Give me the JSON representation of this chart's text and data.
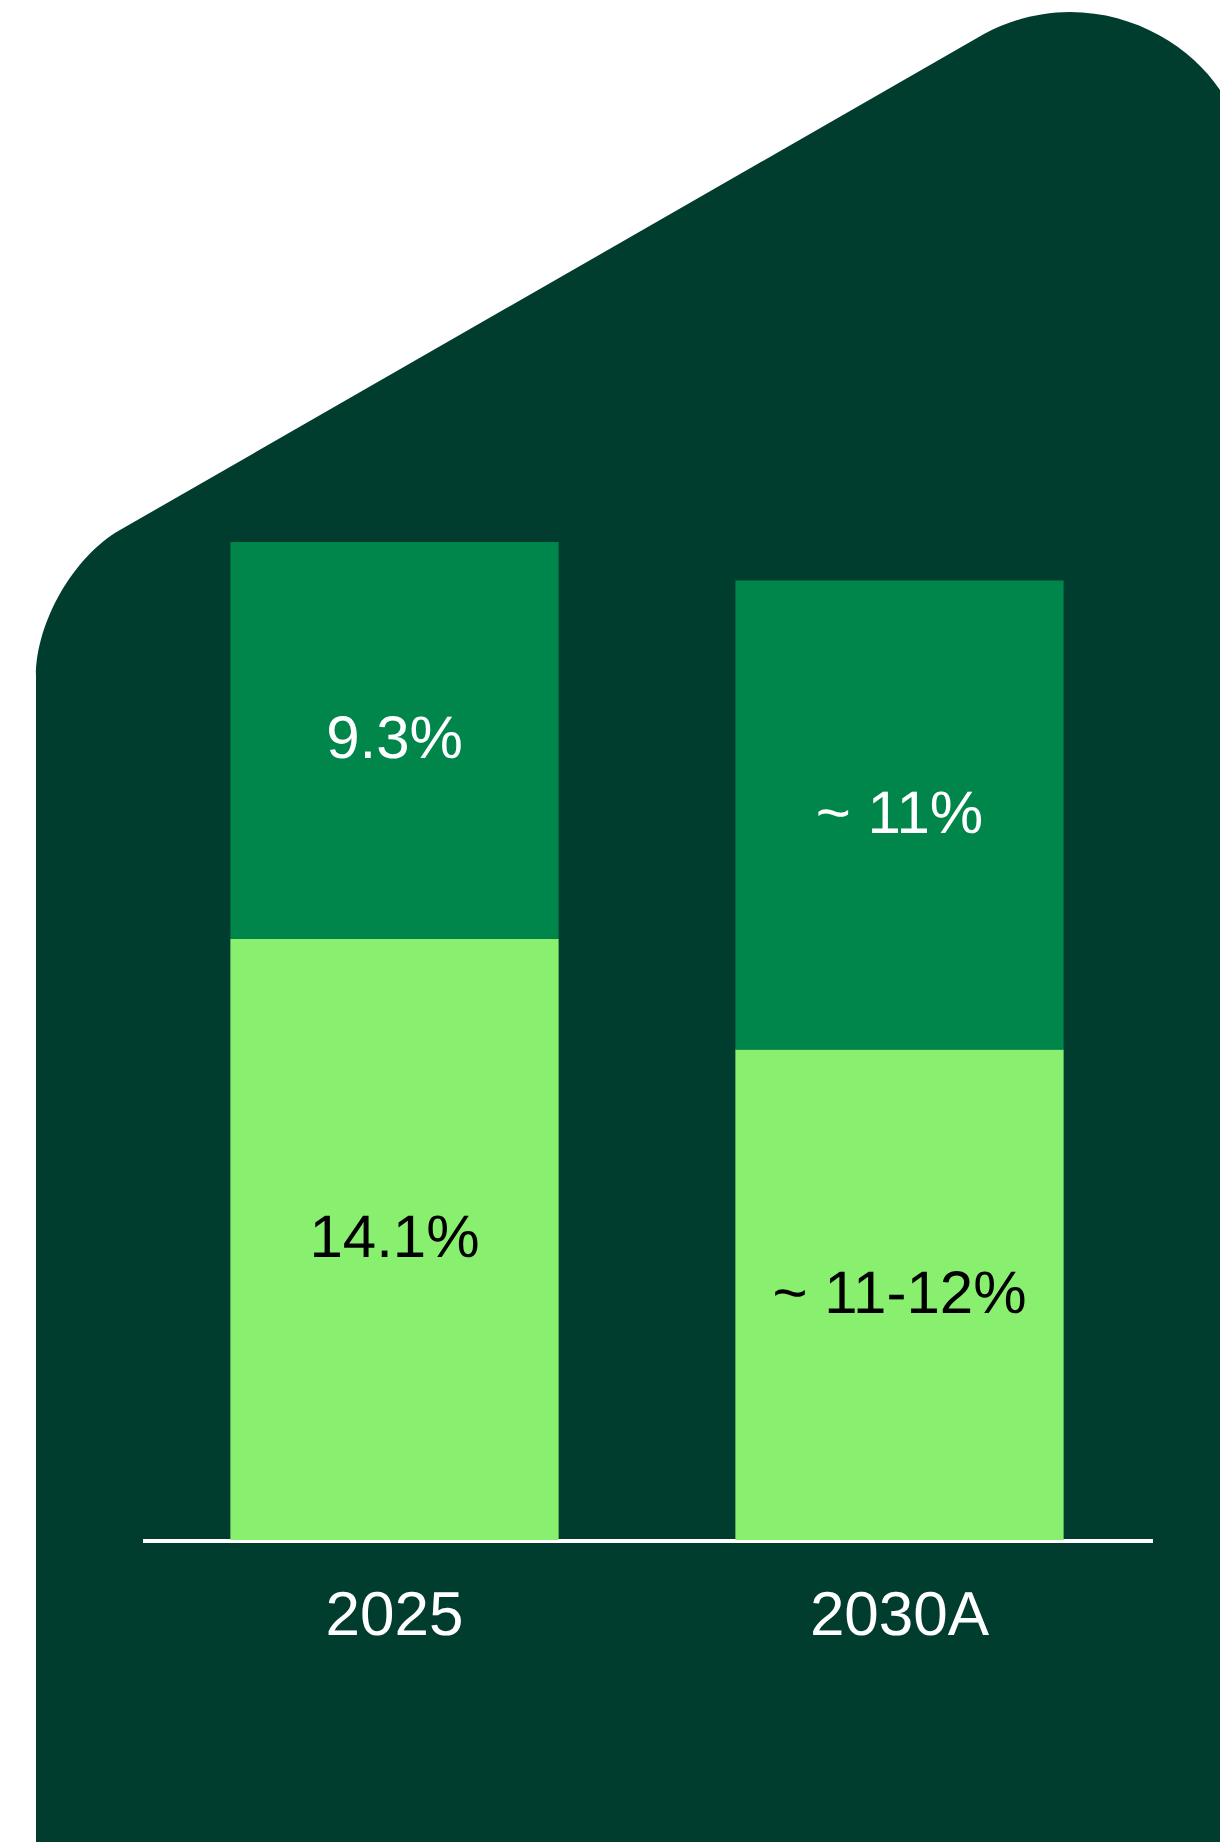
{
  "chart_data": {
    "type": "bar",
    "stacked": true,
    "categories": [
      "2025",
      "2030A"
    ],
    "series": [
      {
        "color": "#89ef6f",
        "values": [
          14.1,
          11.5
        ],
        "value_labels": [
          "14.1%",
          "~ 11-12%"
        ]
      },
      {
        "color": "#00854a",
        "values": [
          9.3,
          11
        ],
        "value_labels": [
          "9.3%",
          "~ 11%"
        ]
      }
    ],
    "tick_labels": "x"
  }
}
